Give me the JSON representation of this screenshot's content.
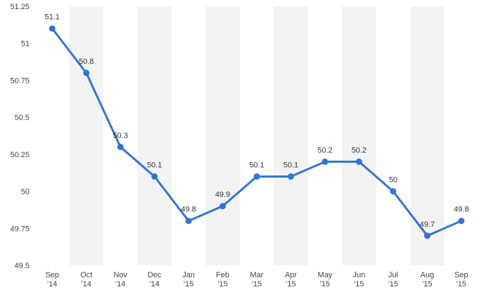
{
  "chart_data": {
    "type": "line",
    "title": "",
    "xlabel": "",
    "ylabel": "",
    "categories": [
      [
        "Sep",
        "'14"
      ],
      [
        "Oct",
        "'14"
      ],
      [
        "Nov",
        "'14"
      ],
      [
        "Dec",
        "'14"
      ],
      [
        "Jan",
        "'15"
      ],
      [
        "Feb",
        "'15"
      ],
      [
        "Mar",
        "'15"
      ],
      [
        "Apr",
        "'15"
      ],
      [
        "May",
        "'15"
      ],
      [
        "Jun",
        "'15"
      ],
      [
        "Jul",
        "'15"
      ],
      [
        "Aug",
        "'15"
      ],
      [
        "Sep",
        "'15"
      ]
    ],
    "series": [
      {
        "values": [
          51.1,
          50.8,
          50.3,
          50.1,
          49.8,
          49.9,
          50.1,
          50.1,
          50.2,
          50.2,
          50.0,
          49.7,
          49.8
        ],
        "labels": [
          "51.1",
          "50.8",
          "50.3",
          "50.1",
          "49.8",
          "49.9",
          "50.1",
          "50.1",
          "50.2",
          "50.2",
          "50",
          "49.7",
          "49.8"
        ]
      }
    ],
    "ylim": [
      49.5,
      51.25
    ],
    "yticks": [
      49.5,
      49.75,
      50,
      50.25,
      50.5,
      50.75,
      51,
      51.25
    ],
    "ytick_labels": [
      "49.5",
      "49.75",
      "50",
      "50.25",
      "50.5",
      "50.75",
      "51",
      "51.25"
    ],
    "grid": {
      "vertical_bands": true,
      "horizontal_lines": false
    },
    "legend": "none",
    "colors": {
      "line": "#3275d4",
      "band": "#f3f3f3"
    }
  }
}
